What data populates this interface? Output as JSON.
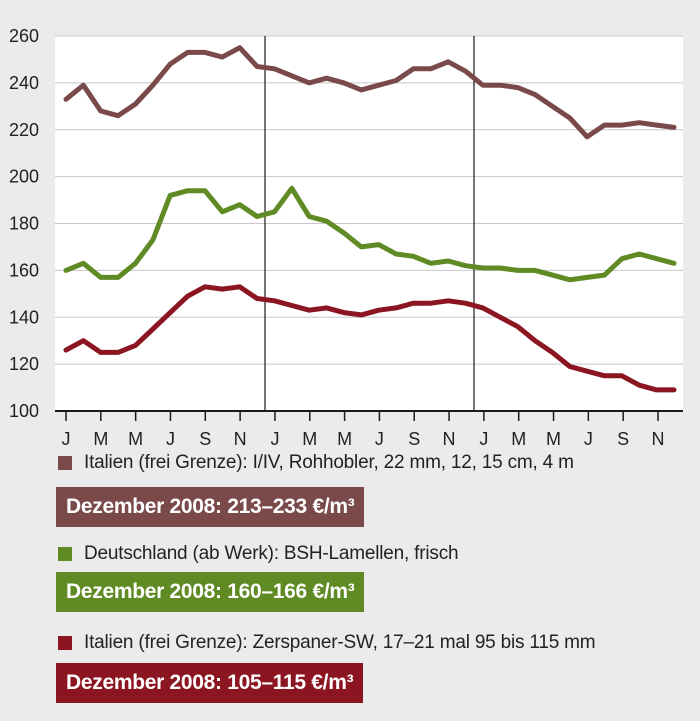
{
  "chart_data": {
    "type": "line",
    "title": "",
    "xlabel": "",
    "ylabel": "",
    "ylim": [
      100,
      260
    ],
    "yticks": [
      100,
      120,
      140,
      160,
      180,
      200,
      220,
      240,
      260
    ],
    "grid": "horizontal",
    "x_tick_labels": [
      "J",
      "M",
      "M",
      "J",
      "S",
      "N",
      "J",
      "M",
      "M",
      "J",
      "S",
      "N",
      "J",
      "M",
      "M",
      "J",
      "S",
      "N"
    ],
    "series": [
      {
        "name": "Italien (frei Grenze): I/IV, Rohhobler, 22 mm, 12, 15 cm, 4 m",
        "color": "#7a4a4b",
        "values": [
          233,
          239,
          228,
          226,
          231,
          239,
          248,
          253,
          253,
          251,
          255,
          247,
          246,
          243,
          240,
          242,
          240,
          237,
          239,
          241,
          246,
          246,
          249,
          245,
          239,
          239,
          238,
          235,
          230,
          225,
          217,
          222,
          222,
          223,
          222,
          221
        ]
      },
      {
        "name": "Deutschland (ab Werk): BSH-Lamellen, frisch",
        "color": "#5f8a24",
        "values": [
          160,
          163,
          157,
          157,
          163,
          173,
          192,
          194,
          194,
          185,
          188,
          183,
          185,
          195,
          183,
          181,
          176,
          170,
          171,
          167,
          166,
          163,
          164,
          162,
          161,
          161,
          160,
          160,
          158,
          156,
          157,
          158,
          165,
          167,
          165,
          163
        ]
      },
      {
        "name": "Italien (frei Grenze): Zerspaner-SW, 17–21 mal 95 bis 115 mm",
        "color": "#8b1520",
        "values": [
          126,
          130,
          125,
          125,
          128,
          135,
          142,
          149,
          153,
          152,
          153,
          148,
          147,
          145,
          143,
          144,
          142,
          141,
          143,
          144,
          146,
          146,
          147,
          146,
          144,
          140,
          136,
          130,
          125,
          119,
          117,
          115,
          115,
          111,
          109,
          109
        ]
      }
    ]
  },
  "legend": {
    "items": [
      {
        "label": "Italien (frei Grenze): I/IV, Rohhobler, 22 mm, 12, 15 cm, 4 m",
        "color": "#7a4a4b",
        "badge": "Dezember 2008: 213–233 €/m³",
        "badge_color": "#7a4a4b"
      },
      {
        "label": "Deutschland (ab Werk): BSH-Lamellen, frisch",
        "color": "#5f8a24",
        "badge": "Dezember 2008: 160–166 €/m³",
        "badge_color": "#5f8a24"
      },
      {
        "label": "Italien (frei Grenze): Zerspaner-SW, 17–21 mal 95 bis 115 mm",
        "color": "#8b1520",
        "badge": "Dezember 2008: 105–115 €/m³",
        "badge_color": "#8b1520"
      }
    ]
  }
}
